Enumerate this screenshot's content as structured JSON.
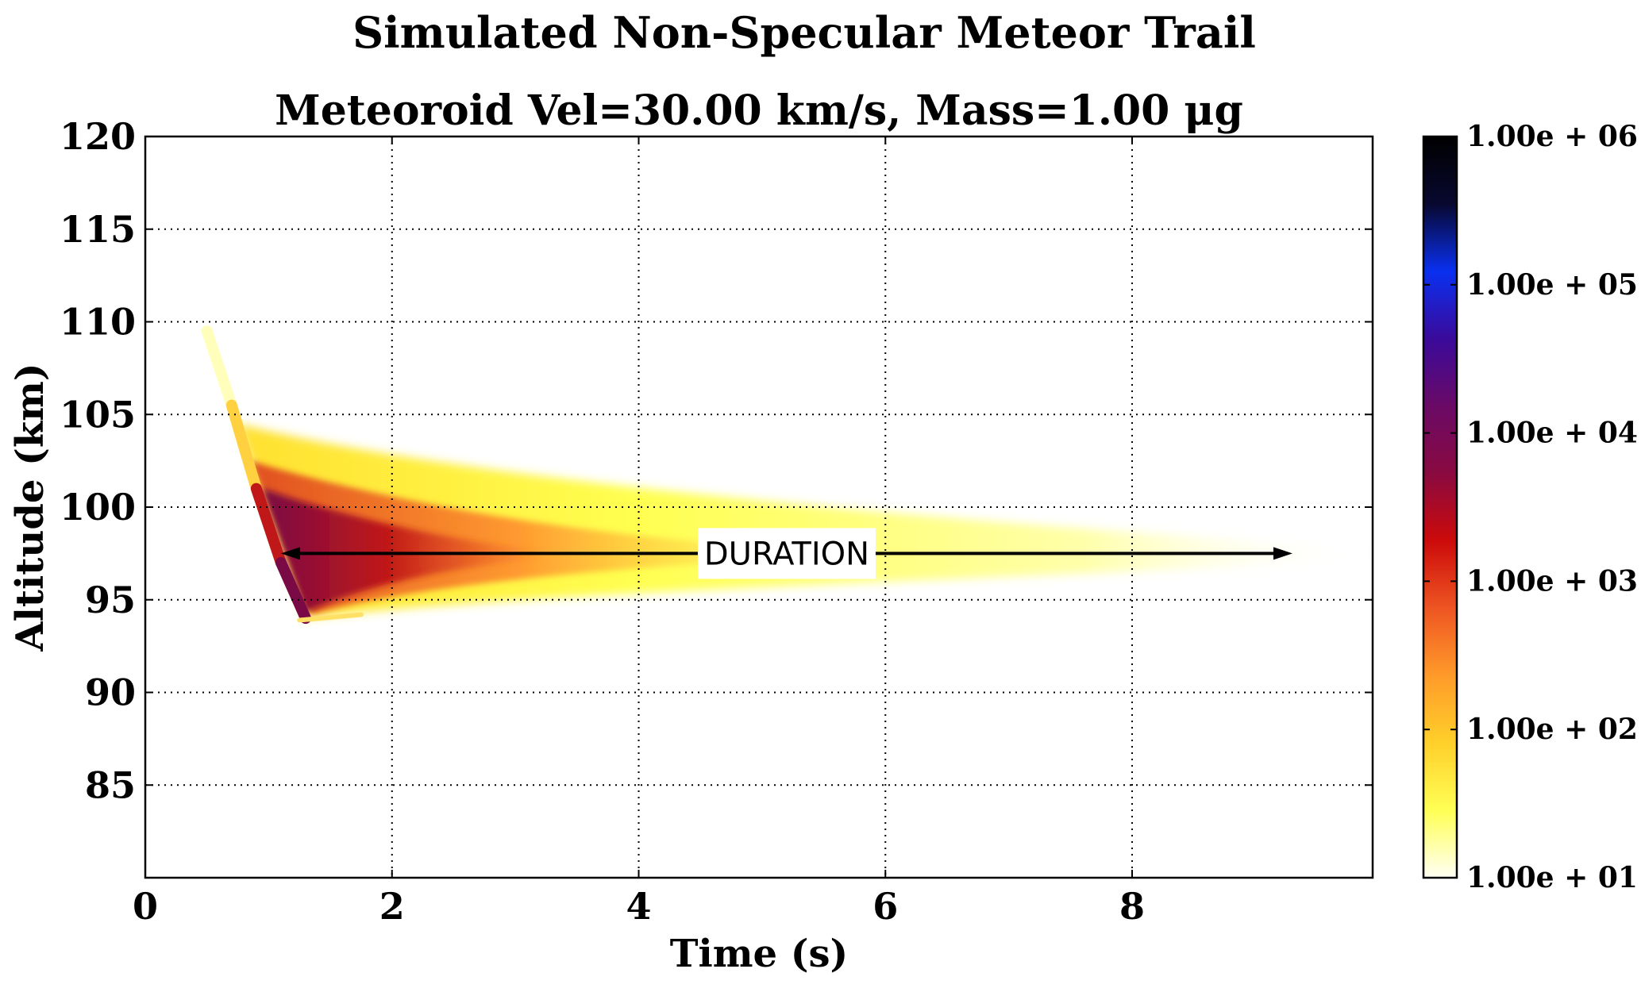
{
  "chart_data": {
    "type": "heatmap",
    "title": "Simulated Non-Specular Meteor Trail",
    "subtitle": "Meteoroid Vel=30.00 km/s, Mass=1.00 μg",
    "xlabel": "Time (s)",
    "ylabel": "Altitude (km)",
    "xlim": [
      0,
      9.95
    ],
    "ylim": [
      80,
      120
    ],
    "x_ticks": [
      0,
      2,
      4,
      6,
      8
    ],
    "y_ticks": [
      85,
      90,
      95,
      100,
      105,
      110,
      115,
      120
    ],
    "grid": true,
    "colorbar": {
      "scale": "log",
      "range": [
        10,
        1000000
      ],
      "tick_labels": [
        "1.00e + 01",
        "1.00e + 02",
        "1.00e + 03",
        "1.00e + 04",
        "1.00e + 05",
        "1.00e + 06"
      ],
      "colormap": [
        "#fffff5",
        "#ffff55",
        "#ffd02a",
        "#ff9a2a",
        "#ee5522",
        "#cc0a0a",
        "#8a0a40",
        "#6a0a66",
        "#3a0a9a",
        "#0a30f0",
        "#080830",
        "#000000"
      ]
    },
    "trail": {
      "leading_edge": [
        [
          0.5,
          109.5
        ],
        [
          0.7,
          105.5
        ],
        [
          0.9,
          101.0
        ],
        [
          1.1,
          97.0
        ],
        [
          1.3,
          94.0
        ]
      ],
      "duration_altitude": 97.5
    },
    "annotations": [
      {
        "label": "DURATION",
        "x_start": 1.1,
        "x_end": 9.3,
        "y": 97.5
      }
    ]
  }
}
